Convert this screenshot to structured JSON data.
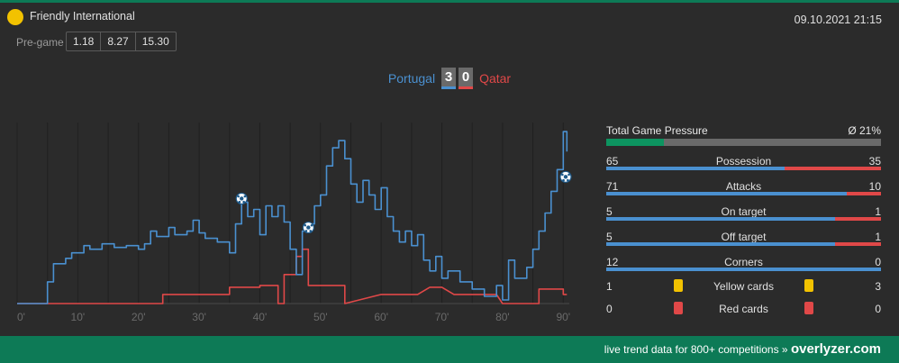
{
  "competition": {
    "name": "Friendly International",
    "dot_color": "#f2c200"
  },
  "datetime": "09.10.2021 21:15",
  "pregame": {
    "label": "Pre-game",
    "odds": [
      "1.18",
      "8.27",
      "15.30"
    ]
  },
  "match": {
    "home_team": "Portugal",
    "home_score": "3",
    "away_team": "Qatar",
    "away_score": "0",
    "home_color": "#4a90d0",
    "away_color": "#e04848"
  },
  "stats": {
    "total_pressure": {
      "label": "Total Game Pressure",
      "avg": "Ø 21%",
      "value": 0.21
    },
    "rows": [
      {
        "label": "Possession",
        "home": "65",
        "away": "35"
      },
      {
        "label": "Attacks",
        "home": "71",
        "away": "10"
      },
      {
        "label": "On target",
        "home": "5",
        "away": "1"
      },
      {
        "label": "Off target",
        "home": "5",
        "away": "1"
      },
      {
        "label": "Corners",
        "home": "12",
        "away": "0"
      }
    ],
    "cards": [
      {
        "label": "Yellow cards",
        "home": "1",
        "away": "3",
        "color": "#f2c200"
      },
      {
        "label": "Red cards",
        "home": "0",
        "away": "0",
        "color": "#e04848"
      }
    ]
  },
  "footer": {
    "text": "live trend data for 800+ competitions »",
    "brand": "overlyzer.com"
  },
  "chart_data": {
    "type": "line",
    "x_ticks": [
      "0'",
      "10'",
      "20'",
      "30'",
      "40'",
      "50'",
      "60'",
      "70'",
      "80'",
      "90'"
    ],
    "xlim": [
      0,
      91
    ],
    "ylim": [
      0,
      100
    ],
    "grid": true,
    "goal_icon": "soccer-ball-icon",
    "series": [
      {
        "team": "home",
        "color": "#4a90d0",
        "points": [
          [
            0,
            0
          ],
          [
            5,
            0
          ],
          [
            5,
            12
          ],
          [
            6,
            12
          ],
          [
            6,
            22
          ],
          [
            8,
            22
          ],
          [
            8,
            25
          ],
          [
            9,
            25
          ],
          [
            9,
            28
          ],
          [
            11,
            28
          ],
          [
            11,
            32
          ],
          [
            12,
            32
          ],
          [
            12,
            30
          ],
          [
            14,
            30
          ],
          [
            14,
            33
          ],
          [
            16,
            33
          ],
          [
            16,
            31
          ],
          [
            18,
            31
          ],
          [
            18,
            32
          ],
          [
            20,
            32
          ],
          [
            20,
            30
          ],
          [
            21,
            30
          ],
          [
            21,
            33
          ],
          [
            22,
            33
          ],
          [
            22,
            40
          ],
          [
            23,
            40
          ],
          [
            23,
            37
          ],
          [
            25,
            37
          ],
          [
            25,
            42
          ],
          [
            26,
            42
          ],
          [
            26,
            38
          ],
          [
            28,
            38
          ],
          [
            28,
            40
          ],
          [
            29,
            40
          ],
          [
            29,
            46
          ],
          [
            30,
            46
          ],
          [
            30,
            39
          ],
          [
            31,
            39
          ],
          [
            31,
            36
          ],
          [
            33,
            36
          ],
          [
            33,
            34
          ],
          [
            35,
            34
          ],
          [
            35,
            28
          ],
          [
            36,
            28
          ],
          [
            36,
            44
          ],
          [
            37,
            44
          ],
          [
            37,
            56
          ],
          [
            38,
            56
          ],
          [
            38,
            48
          ],
          [
            39,
            48
          ],
          [
            39,
            52
          ],
          [
            40,
            52
          ],
          [
            40,
            38
          ],
          [
            41,
            38
          ],
          [
            41,
            54
          ],
          [
            42,
            54
          ],
          [
            42,
            48
          ],
          [
            43,
            48
          ],
          [
            43,
            54
          ],
          [
            44,
            54
          ],
          [
            44,
            45
          ],
          [
            45,
            45
          ],
          [
            45,
            30
          ],
          [
            46,
            30
          ],
          [
            46,
            16
          ],
          [
            47,
            16
          ],
          [
            47,
            40
          ],
          [
            48,
            40
          ],
          [
            48,
            44
          ],
          [
            49,
            44
          ],
          [
            49,
            54
          ],
          [
            50,
            54
          ],
          [
            50,
            60
          ],
          [
            51,
            60
          ],
          [
            51,
            76
          ],
          [
            52,
            76
          ],
          [
            52,
            86
          ],
          [
            53,
            86
          ],
          [
            53,
            90
          ],
          [
            54,
            90
          ],
          [
            54,
            80
          ],
          [
            55,
            80
          ],
          [
            55,
            66
          ],
          [
            56,
            66
          ],
          [
            56,
            56
          ],
          [
            57,
            56
          ],
          [
            57,
            68
          ],
          [
            58,
            68
          ],
          [
            58,
            60
          ],
          [
            59,
            60
          ],
          [
            59,
            52
          ],
          [
            60,
            52
          ],
          [
            60,
            64
          ],
          [
            61,
            64
          ],
          [
            61,
            48
          ],
          [
            62,
            48
          ],
          [
            62,
            40
          ],
          [
            63,
            40
          ],
          [
            63,
            34
          ],
          [
            64,
            34
          ],
          [
            64,
            40
          ],
          [
            65,
            40
          ],
          [
            65,
            32
          ],
          [
            66,
            32
          ],
          [
            66,
            38
          ],
          [
            67,
            38
          ],
          [
            67,
            24
          ],
          [
            68,
            24
          ],
          [
            68,
            18
          ],
          [
            69,
            18
          ],
          [
            69,
            26
          ],
          [
            70,
            26
          ],
          [
            70,
            14
          ],
          [
            71,
            14
          ],
          [
            71,
            18
          ],
          [
            73,
            18
          ],
          [
            73,
            12
          ],
          [
            75,
            12
          ],
          [
            75,
            8
          ],
          [
            77,
            8
          ],
          [
            77,
            4
          ],
          [
            79,
            4
          ],
          [
            79,
            10
          ],
          [
            80,
            10
          ],
          [
            80,
            2
          ],
          [
            81,
            2
          ],
          [
            81,
            24
          ],
          [
            82,
            24
          ],
          [
            82,
            14
          ],
          [
            84,
            14
          ],
          [
            84,
            20
          ],
          [
            85,
            20
          ],
          [
            85,
            30
          ],
          [
            86,
            30
          ],
          [
            86,
            40
          ],
          [
            87,
            40
          ],
          [
            87,
            50
          ],
          [
            88,
            50
          ],
          [
            88,
            62
          ],
          [
            89,
            62
          ],
          [
            89,
            74
          ],
          [
            90,
            74
          ],
          [
            90,
            95
          ],
          [
            90.6,
            95
          ],
          [
            90.6,
            84
          ]
        ]
      },
      {
        "team": "away",
        "color": "#e04848",
        "points": [
          [
            0,
            0
          ],
          [
            24,
            0
          ],
          [
            24,
            5
          ],
          [
            35,
            5
          ],
          [
            35,
            9
          ],
          [
            40,
            9
          ],
          [
            40,
            10
          ],
          [
            43,
            10
          ],
          [
            43,
            0
          ],
          [
            44,
            0
          ],
          [
            44,
            16
          ],
          [
            46,
            16
          ],
          [
            46,
            26
          ],
          [
            47,
            26
          ],
          [
            47,
            30
          ],
          [
            48,
            30
          ],
          [
            48,
            10
          ],
          [
            54,
            10
          ],
          [
            54,
            0
          ],
          [
            60,
            5
          ],
          [
            66,
            5
          ],
          [
            68,
            9
          ],
          [
            70,
            9
          ],
          [
            72,
            5
          ],
          [
            79,
            5
          ],
          [
            80,
            0
          ],
          [
            86,
            0
          ],
          [
            86,
            8
          ],
          [
            90,
            8
          ],
          [
            90,
            5
          ],
          [
            90.6,
            5
          ]
        ]
      }
    ],
    "goals": [
      [
        37,
        58
      ],
      [
        48,
        42
      ],
      [
        90.4,
        70
      ]
    ]
  }
}
